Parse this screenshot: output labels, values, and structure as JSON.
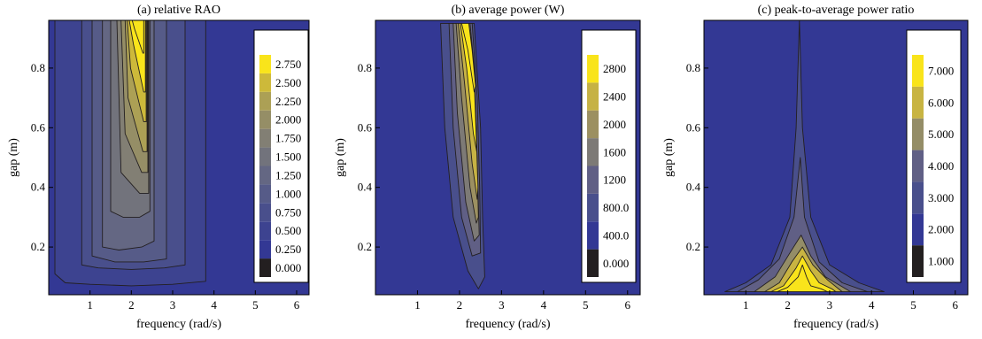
{
  "chart_data": [
    {
      "type": "heatmap",
      "subtype": "filled-contour",
      "title": "(a) relative RAO",
      "xlabel": "frequency (rad/s)",
      "ylabel": "gap (m)",
      "xlim": [
        0,
        6.3
      ],
      "ylim": [
        0.04,
        0.96
      ],
      "xticks": [
        "1",
        "2",
        "3",
        "4",
        "5",
        "6"
      ],
      "xtick_values": [
        1,
        2,
        3,
        4,
        5,
        6
      ],
      "yticks": [
        "0.2",
        "0.4",
        "0.6",
        "0.8"
      ],
      "ytick_values": [
        0.2,
        0.4,
        0.6,
        0.8
      ],
      "legend_position": "right",
      "legend_labels": [
        "0.000",
        "0.250",
        "0.500",
        "0.750",
        "1.000",
        "1.250",
        "1.500",
        "1.750",
        "2.000",
        "2.250",
        "2.500",
        "2.750"
      ],
      "legend_colors": [
        "#231f20",
        "#333894",
        "#3d4390",
        "#494f8c",
        "#565b88",
        "#646783",
        "#72737c",
        "#827f74",
        "#958e66",
        "#aca055",
        "#cdb93a",
        "#f9e41b"
      ],
      "regions": [
        {
          "level": 0.25,
          "polygon": [
            [
              0.15,
              0.11
            ],
            [
              0.4,
              0.08
            ],
            [
              1.0,
              0.075
            ],
            [
              2.0,
              0.07
            ],
            [
              3.0,
              0.075
            ],
            [
              3.8,
              0.085
            ],
            [
              3.8,
              0.96
            ],
            [
              0.15,
              0.96
            ]
          ]
        },
        {
          "level": 0.5,
          "polygon": [
            [
              0.8,
              0.14
            ],
            [
              1.2,
              0.13
            ],
            [
              2.0,
              0.125
            ],
            [
              2.8,
              0.13
            ],
            [
              3.3,
              0.14
            ],
            [
              3.3,
              0.96
            ],
            [
              0.8,
              0.96
            ]
          ]
        },
        {
          "level": 0.75,
          "polygon": [
            [
              1.05,
              0.17
            ],
            [
              1.6,
              0.15
            ],
            [
              2.3,
              0.15
            ],
            [
              2.85,
              0.16
            ],
            [
              2.85,
              0.96
            ],
            [
              1.05,
              0.96
            ]
          ]
        },
        {
          "level": 1.0,
          "polygon": [
            [
              1.3,
              0.2
            ],
            [
              1.7,
              0.19
            ],
            [
              2.25,
              0.2
            ],
            [
              2.55,
              0.22
            ],
            [
              2.55,
              0.96
            ],
            [
              1.3,
              0.96
            ]
          ]
        },
        {
          "level": 1.25,
          "polygon": [
            [
              1.5,
              0.32
            ],
            [
              1.8,
              0.3
            ],
            [
              2.2,
              0.3
            ],
            [
              2.45,
              0.32
            ],
            [
              2.45,
              0.96
            ],
            [
              1.5,
              0.96
            ]
          ]
        },
        {
          "level": 1.5,
          "polygon": [
            [
              1.75,
              0.45
            ],
            [
              2.2,
              0.38
            ],
            [
              2.42,
              0.38
            ],
            [
              2.42,
              0.96
            ],
            [
              1.65,
              0.96
            ]
          ]
        },
        {
          "level": 1.75,
          "polygon": [
            [
              1.85,
              0.58
            ],
            [
              2.25,
              0.45
            ],
            [
              2.4,
              0.45
            ],
            [
              2.4,
              0.96
            ],
            [
              1.75,
              0.96
            ]
          ]
        },
        {
          "level": 2.0,
          "polygon": [
            [
              1.92,
              0.7
            ],
            [
              2.28,
              0.52
            ],
            [
              2.38,
              0.52
            ],
            [
              2.38,
              0.96
            ],
            [
              1.85,
              0.96
            ]
          ]
        },
        {
          "level": 2.25,
          "polygon": [
            [
              1.98,
              0.8
            ],
            [
              2.3,
              0.62
            ],
            [
              2.36,
              0.62
            ],
            [
              2.36,
              0.96
            ],
            [
              1.9,
              0.96
            ]
          ]
        },
        {
          "level": 2.5,
          "polygon": [
            [
              2.05,
              0.88
            ],
            [
              2.3,
              0.72
            ],
            [
              2.34,
              0.72
            ],
            [
              2.34,
              0.96
            ],
            [
              1.95,
              0.96
            ]
          ]
        },
        {
          "level": 2.75,
          "polygon": [
            [
              2.08,
              0.93
            ],
            [
              2.28,
              0.85
            ],
            [
              2.3,
              0.85
            ],
            [
              2.3,
              0.96
            ],
            [
              2.02,
              0.96
            ]
          ]
        }
      ]
    },
    {
      "type": "heatmap",
      "subtype": "filled-contour",
      "title": "(b) average power (W)",
      "xlabel": "frequency (rad/s)",
      "ylabel": "gap (m)",
      "xlim": [
        0,
        6.3
      ],
      "ylim": [
        0.04,
        0.96
      ],
      "xticks": [
        "1",
        "2",
        "3",
        "4",
        "5",
        "6"
      ],
      "xtick_values": [
        1,
        2,
        3,
        4,
        5,
        6
      ],
      "yticks": [
        "0.2",
        "0.4",
        "0.6",
        "0.8"
      ],
      "ytick_values": [
        0.2,
        0.4,
        0.6,
        0.8
      ],
      "legend_position": "right",
      "legend_labels": [
        "0.000",
        "400.0",
        "800.0",
        "1200",
        "1600",
        "2000",
        "2400",
        "2800"
      ],
      "legend_colors": [
        "#231f20",
        "#333894",
        "#494f8c",
        "#605f85",
        "#7d7a76",
        "#9c9061",
        "#c6b244",
        "#f9e41b"
      ],
      "regions": [
        {
          "level": 400,
          "polygon": [
            [
              1.55,
              0.95
            ],
            [
              1.65,
              0.6
            ],
            [
              1.85,
              0.3
            ],
            [
              2.2,
              0.12
            ],
            [
              2.45,
              0.06
            ],
            [
              2.6,
              0.1
            ],
            [
              2.55,
              0.3
            ],
            [
              2.5,
              0.6
            ],
            [
              2.35,
              0.95
            ]
          ]
        },
        {
          "level": 800,
          "polygon": [
            [
              1.75,
              0.95
            ],
            [
              1.85,
              0.6
            ],
            [
              2.05,
              0.3
            ],
            [
              2.3,
              0.17
            ],
            [
              2.5,
              0.18
            ],
            [
              2.48,
              0.4
            ],
            [
              2.42,
              0.7
            ],
            [
              2.3,
              0.95
            ]
          ]
        },
        {
          "level": 1200,
          "polygon": [
            [
              1.85,
              0.95
            ],
            [
              1.95,
              0.65
            ],
            [
              2.15,
              0.35
            ],
            [
              2.35,
              0.22
            ],
            [
              2.47,
              0.24
            ],
            [
              2.42,
              0.5
            ],
            [
              2.35,
              0.8
            ],
            [
              2.25,
              0.95
            ]
          ]
        },
        {
          "level": 1600,
          "polygon": [
            [
              1.92,
              0.95
            ],
            [
              2.05,
              0.7
            ],
            [
              2.25,
              0.4
            ],
            [
              2.4,
              0.28
            ],
            [
              2.45,
              0.3
            ],
            [
              2.4,
              0.6
            ],
            [
              2.3,
              0.85
            ],
            [
              2.22,
              0.95
            ]
          ]
        },
        {
          "level": 2000,
          "polygon": [
            [
              1.97,
              0.95
            ],
            [
              2.12,
              0.75
            ],
            [
              2.3,
              0.48
            ],
            [
              2.42,
              0.36
            ],
            [
              2.44,
              0.4
            ],
            [
              2.38,
              0.65
            ],
            [
              2.27,
              0.9
            ],
            [
              2.2,
              0.95
            ]
          ]
        },
        {
          "level": 2400,
          "polygon": [
            [
              2.02,
              0.95
            ],
            [
              2.17,
              0.8
            ],
            [
              2.33,
              0.58
            ],
            [
              2.41,
              0.52
            ],
            [
              2.36,
              0.72
            ],
            [
              2.25,
              0.92
            ],
            [
              2.18,
              0.95
            ]
          ]
        },
        {
          "level": 2800,
          "polygon": [
            [
              2.05,
              0.95
            ],
            [
              2.2,
              0.86
            ],
            [
              2.35,
              0.72
            ],
            [
              2.38,
              0.74
            ],
            [
              2.3,
              0.86
            ],
            [
              2.22,
              0.95
            ]
          ]
        }
      ]
    },
    {
      "type": "heatmap",
      "subtype": "filled-contour",
      "title": "(c) peak-to-average power ratio",
      "xlabel": "frequency (rad/s)",
      "ylabel": "gap (m)",
      "xlim": [
        0,
        6.3
      ],
      "ylim": [
        0.04,
        0.96
      ],
      "xticks": [
        "1",
        "2",
        "3",
        "4",
        "5",
        "6"
      ],
      "xtick_values": [
        1,
        2,
        3,
        4,
        5,
        6
      ],
      "yticks": [
        "0.2",
        "0.4",
        "0.6",
        "0.8"
      ],
      "ytick_values": [
        0.2,
        0.4,
        0.6,
        0.8
      ],
      "legend_position": "right",
      "legend_labels": [
        "1.000",
        "2.000",
        "3.000",
        "4.000",
        "5.000",
        "6.000",
        "7.000"
      ],
      "legend_colors": [
        "#231f20",
        "#333894",
        "#494f8c",
        "#605f85",
        "#948d67",
        "#c8b442",
        "#f9e41b"
      ],
      "regions": [
        {
          "level": 2,
          "polygon": [
            [
              0.5,
              0.05
            ],
            [
              1.0,
              0.08
            ],
            [
              1.6,
              0.14
            ],
            [
              2.05,
              0.3
            ],
            [
              2.2,
              0.6
            ],
            [
              2.28,
              0.96
            ],
            [
              2.35,
              0.6
            ],
            [
              2.55,
              0.3
            ],
            [
              3.0,
              0.14
            ],
            [
              3.7,
              0.08
            ],
            [
              4.3,
              0.05
            ]
          ]
        },
        {
          "level": 3,
          "polygon": [
            [
              0.8,
              0.05
            ],
            [
              1.3,
              0.09
            ],
            [
              1.8,
              0.16
            ],
            [
              2.15,
              0.3
            ],
            [
              2.3,
              0.5
            ],
            [
              2.4,
              0.3
            ],
            [
              2.75,
              0.15
            ],
            [
              3.3,
              0.08
            ],
            [
              3.9,
              0.05
            ]
          ]
        },
        {
          "level": 4,
          "polygon": [
            [
              1.2,
              0.05
            ],
            [
              1.7,
              0.1
            ],
            [
              2.05,
              0.18
            ],
            [
              2.32,
              0.24
            ],
            [
              2.55,
              0.17
            ],
            [
              2.9,
              0.1
            ],
            [
              3.5,
              0.05
            ]
          ]
        },
        {
          "level": 5,
          "polygon": [
            [
              1.45,
              0.05
            ],
            [
              1.8,
              0.08
            ],
            [
              2.1,
              0.15
            ],
            [
              2.35,
              0.2
            ],
            [
              2.6,
              0.14
            ],
            [
              2.95,
              0.09
            ],
            [
              3.3,
              0.05
            ]
          ]
        },
        {
          "level": 6,
          "polygon": [
            [
              1.6,
              0.05
            ],
            [
              1.9,
              0.07
            ],
            [
              2.2,
              0.13
            ],
            [
              2.35,
              0.17
            ],
            [
              2.55,
              0.12
            ],
            [
              2.75,
              0.08
            ],
            [
              3.05,
              0.06
            ],
            [
              3.15,
              0.05
            ]
          ]
        },
        {
          "level": 7,
          "polygon": [
            [
              1.75,
              0.05
            ],
            [
              2.0,
              0.065
            ],
            [
              2.25,
              0.1
            ],
            [
              2.35,
              0.14
            ],
            [
              2.45,
              0.1
            ],
            [
              2.55,
              0.07
            ],
            [
              2.8,
              0.06
            ],
            [
              2.95,
              0.05
            ]
          ]
        }
      ]
    }
  ]
}
